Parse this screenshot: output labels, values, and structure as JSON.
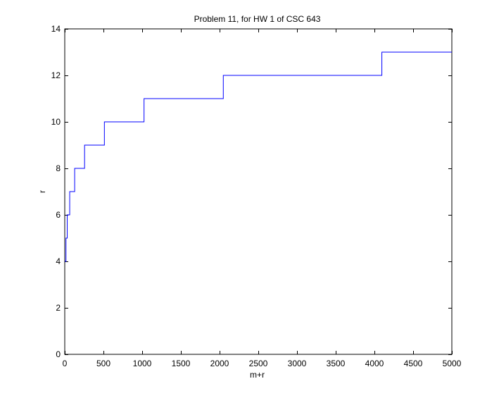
{
  "chart_data": {
    "type": "line",
    "line_style": "stairs",
    "title": "Problem 11, for HW 1 of CSC 643",
    "xlabel": "m+r",
    "ylabel": "r",
    "xlim": [
      0,
      5000
    ],
    "ylim": [
      0,
      14
    ],
    "xticks": [
      0,
      500,
      1000,
      1500,
      2000,
      2500,
      3000,
      3500,
      4000,
      4500,
      5000
    ],
    "yticks": [
      0,
      2,
      4,
      6,
      8,
      10,
      12,
      14
    ],
    "grid": false,
    "legend": "none",
    "series": [
      {
        "color": "#0000ff",
        "x": [
          0,
          16,
          32,
          64,
          128,
          256,
          512,
          1024,
          2048,
          4096,
          5000
        ],
        "y": [
          4,
          5,
          6,
          7,
          8,
          9,
          10,
          11,
          12,
          13,
          13
        ]
      }
    ]
  }
}
